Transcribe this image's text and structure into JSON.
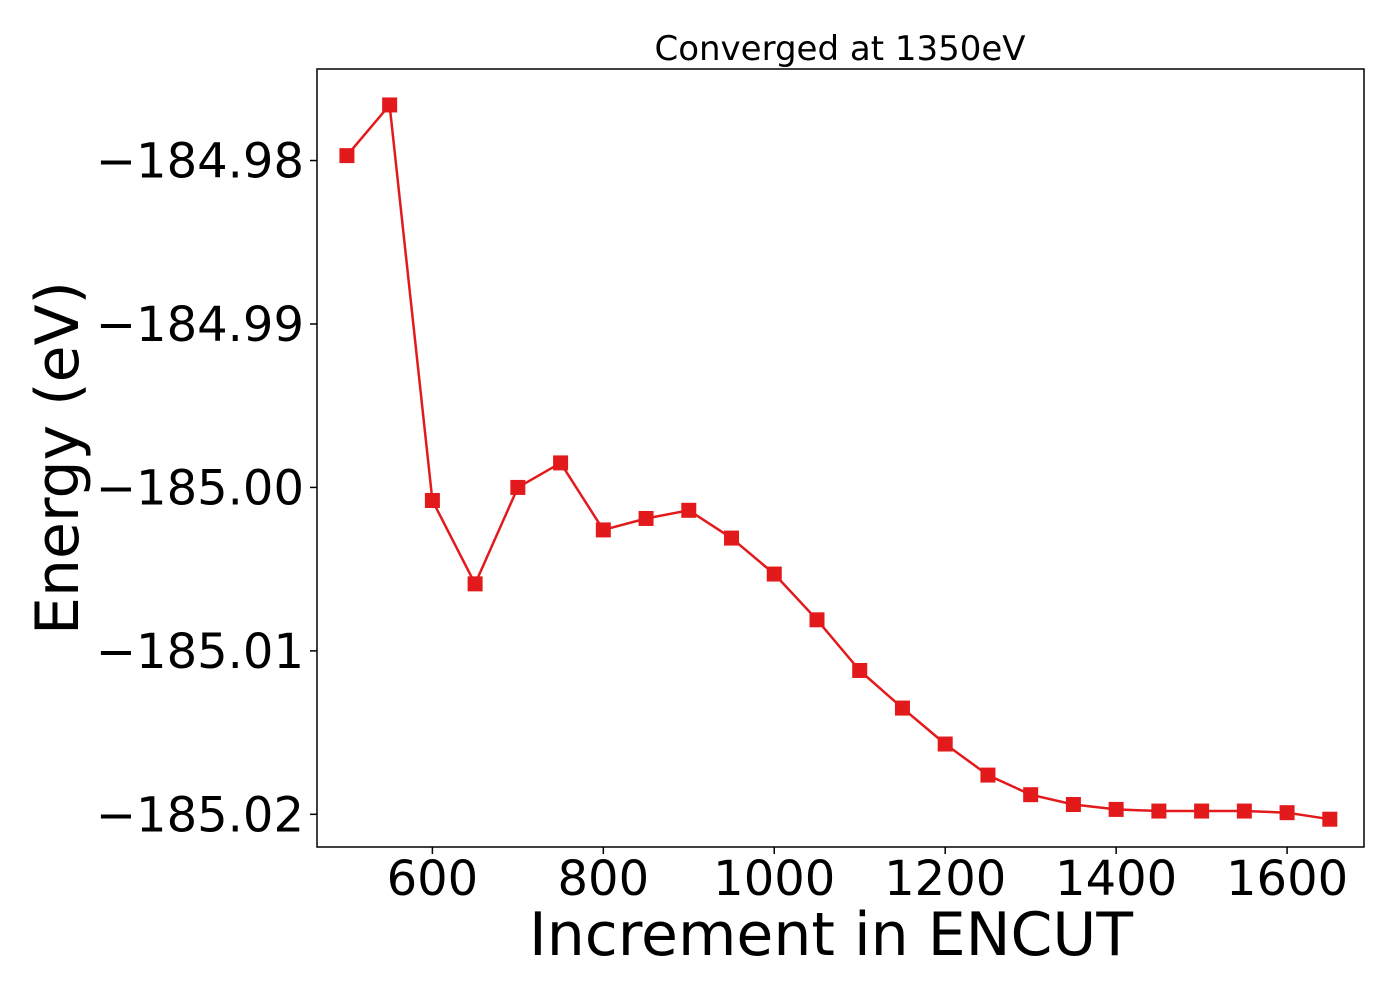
{
  "chart_data": {
    "type": "line",
    "title": "Converged at 1350eV",
    "xlabel": "Increment in ENCUT",
    "ylabel": "Energy (eV)",
    "xlim": [
      465,
      1690
    ],
    "ylim": [
      -185.022,
      -184.9744
    ],
    "x_ticks": [
      600,
      800,
      1000,
      1200,
      1400,
      1600
    ],
    "x_tick_labels": [
      "600",
      "800",
      "1000",
      "1200",
      "1400",
      "1600"
    ],
    "y_ticks": [
      -184.98,
      -184.99,
      -185.0,
      -185.01,
      -185.02
    ],
    "y_tick_labels": [
      "−184.98",
      "−184.99",
      "−185.00",
      "−185.01",
      "−185.02"
    ],
    "grid": false,
    "series": [
      {
        "color": "#e31a1c",
        "marker": "square",
        "x": [
          500,
          550,
          600,
          650,
          700,
          750,
          800,
          850,
          900,
          950,
          1000,
          1050,
          1100,
          1150,
          1200,
          1250,
          1300,
          1350,
          1400,
          1450,
          1500,
          1550,
          1600,
          1650
        ],
        "y": [
          -184.9797,
          -184.9766,
          -185.0008,
          -185.0059,
          -185.0,
          -184.9985,
          -185.0026,
          -185.0019,
          -185.0014,
          -185.0031,
          -185.0053,
          -185.0081,
          -185.0112,
          -185.0135,
          -185.0157,
          -185.0176,
          -185.0188,
          -185.0194,
          -185.0197,
          -185.0198,
          -185.0198,
          -185.0198,
          -185.0199,
          -185.0203
        ]
      }
    ]
  }
}
